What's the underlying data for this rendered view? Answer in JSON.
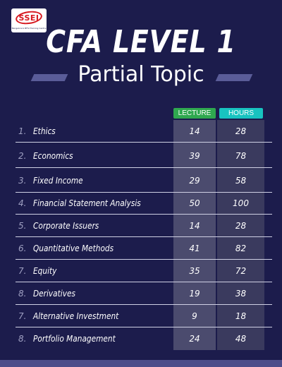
{
  "logo": {
    "text": "SSEI",
    "tagline": "Bangalore's BFSI Training Centre"
  },
  "title": "CFA LEVEL 1",
  "subtitle": "Partial Topic",
  "table": {
    "headers": {
      "lecture": "LECTURE",
      "hours": "HOURS"
    },
    "rows": [
      {
        "num": "1.",
        "topic": "Ethics",
        "lecture": "14",
        "hours": "28"
      },
      {
        "num": "2.",
        "topic": "Economics",
        "lecture": "39",
        "hours": "78"
      },
      {
        "num": "3.",
        "topic": "Fixed Income",
        "lecture": "29",
        "hours": "58"
      },
      {
        "num": "4.",
        "topic": "Financial Statement Analysis",
        "lecture": "50",
        "hours": "100"
      },
      {
        "num": "5.",
        "topic": "Corporate Issuers",
        "lecture": "14",
        "hours": "28"
      },
      {
        "num": "6.",
        "topic": "Quantitative Methods",
        "lecture": "41",
        "hours": "82"
      },
      {
        "num": "7.",
        "topic": "Equity",
        "lecture": "35",
        "hours": "72"
      },
      {
        "num": "8.",
        "topic": "Derivatives",
        "lecture": "19",
        "hours": "38"
      },
      {
        "num": "7.",
        "topic": "Alternative Investment",
        "lecture": "9",
        "hours": "18"
      },
      {
        "num": "8.",
        "topic": "Portfolio Management",
        "lecture": "24",
        "hours": "48"
      }
    ]
  },
  "colors": {
    "background": "#1c1c4c",
    "lecture_header": "#2fa84f",
    "hours_header": "#18c3c0",
    "accent_stripe": "#5a5c98"
  }
}
